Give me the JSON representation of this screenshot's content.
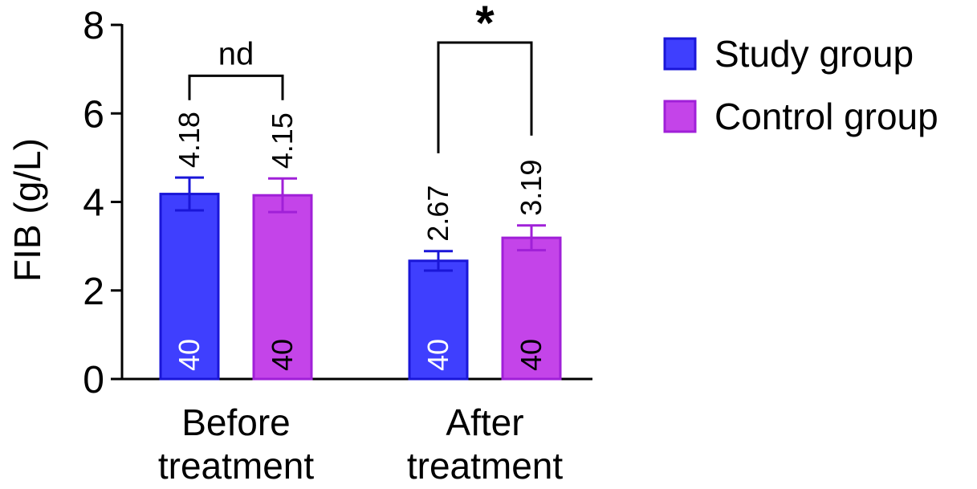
{
  "chart_data": {
    "type": "bar",
    "title": "",
    "ylabel": "FIB (g/L)",
    "xlabel": "",
    "ylim": [
      0,
      8
    ],
    "yticks": [
      "0",
      "2",
      "4",
      "6",
      "8"
    ],
    "grid": false,
    "legend_position": "top-right",
    "categories": [
      {
        "line1": "Before",
        "line2": "treatment"
      },
      {
        "line1": "After",
        "line2": "treatment"
      }
    ],
    "series": [
      {
        "name": "Study group",
        "color": "#3f3ffe",
        "edge": "#1a16d8",
        "values": [
          4.18,
          2.67
        ],
        "value_labels": [
          "4.18",
          "2.67"
        ],
        "error": [
          0.37,
          0.22
        ],
        "n": [
          "40",
          "40"
        ],
        "n_label_color": "#ffffff"
      },
      {
        "name": "Control group",
        "color": "#c444e9",
        "edge": "#a020d8",
        "values": [
          4.15,
          3.19
        ],
        "value_labels": [
          "4.15",
          "3.19"
        ],
        "error": [
          0.38,
          0.28
        ],
        "n": [
          "40",
          "40"
        ],
        "n_label_color": "#000000"
      }
    ],
    "significance": [
      {
        "category_index": 0,
        "label": "nd",
        "level": 6.85,
        "left_bottom": 6.3,
        "right_bottom": 6.3
      },
      {
        "category_index": 1,
        "label": "*",
        "level": 7.6,
        "left_bottom": 5.1,
        "right_bottom": 5.5
      }
    ]
  }
}
